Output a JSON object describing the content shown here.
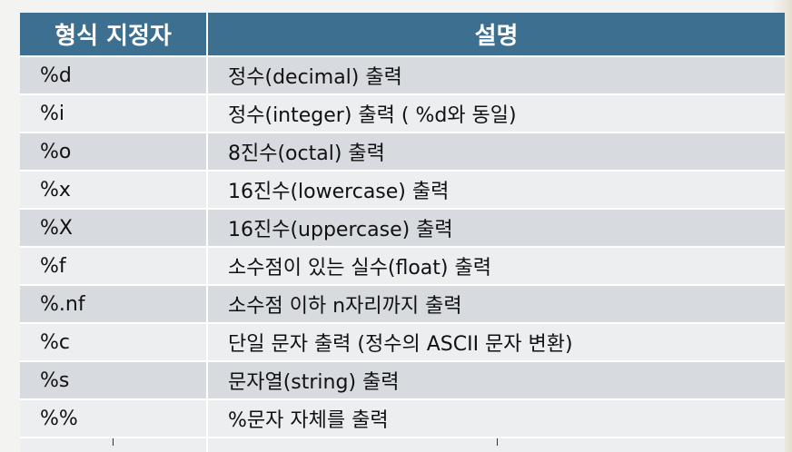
{
  "table": {
    "headers": [
      "형식 지정자",
      "설명"
    ],
    "rows": [
      {
        "spec": "%d",
        "desc": "정수(decimal) 출력"
      },
      {
        "spec": "%i",
        "desc": "정수(integer) 출력 ( %d와 동일)"
      },
      {
        "spec": "%o",
        "desc": "8진수(octal) 출력"
      },
      {
        "spec": "%x",
        "desc": "16진수(lowercase) 출력"
      },
      {
        "spec": "%X",
        "desc": "16진수(uppercase) 출력"
      },
      {
        "spec": "%f",
        "desc": "소수점이 있는 실수(float) 출력"
      },
      {
        "spec": "%.nf",
        "desc": "소수점 이하 n자리까지 출력"
      },
      {
        "spec": "%c",
        "desc": "단일 문자 출력 (정수의 ASCII 문자 변환)"
      },
      {
        "spec": "%s",
        "desc": "문자열(string) 출력"
      },
      {
        "spec": "%%",
        "desc": "%문자 자체를 출력"
      }
    ]
  },
  "colors": {
    "header_bg": "#3d7090",
    "row_dark": "#d7dadf",
    "row_light": "#eceef0"
  }
}
